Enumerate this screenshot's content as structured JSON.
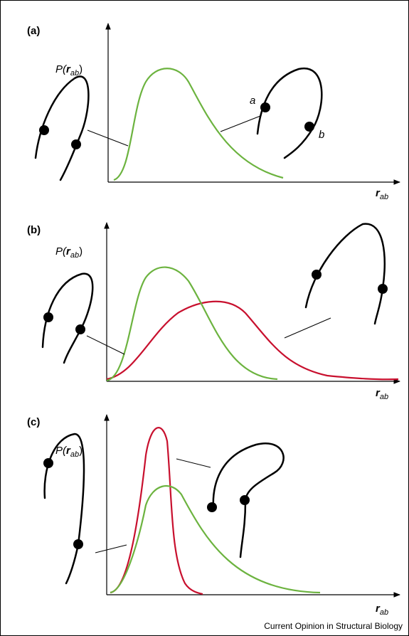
{
  "panels": [
    {
      "label": "(a)",
      "y_label": {
        "prefix": "P(",
        "symbol": "r",
        "subscript": "ab",
        "suffix": ")"
      },
      "x_label": {
        "symbol": "r",
        "subscript": "ab"
      },
      "site_labels": [
        "a",
        "b"
      ]
    },
    {
      "label": "(b)",
      "y_label": {
        "prefix": "P(",
        "symbol": "r",
        "subscript": "ab",
        "suffix": ")"
      },
      "x_label": {
        "symbol": "r",
        "subscript": "ab"
      }
    },
    {
      "label": "(c)",
      "y_label": {
        "prefix": "P(",
        "symbol": "r",
        "subscript": "ab",
        "suffix": ")"
      },
      "x_label": {
        "symbol": "r",
        "subscript": "ab"
      }
    }
  ],
  "footer": "Current Opinion in Structural Biology"
}
